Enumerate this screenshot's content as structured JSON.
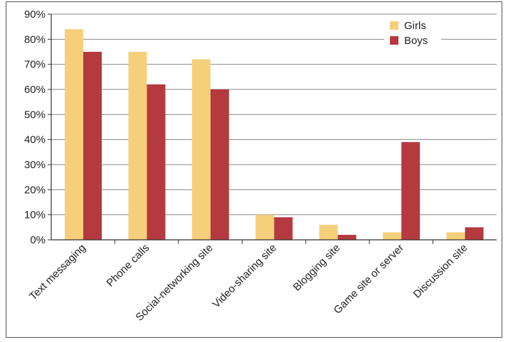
{
  "chart_data": {
    "type": "bar",
    "title": "",
    "xlabel": "",
    "ylabel": "",
    "categories": [
      "Text messaging",
      "Phone calls",
      "Social-networking site",
      "Video-sharing site",
      "Blogging site",
      "Game site or server",
      "Discussion site"
    ],
    "series": [
      {
        "name": "Girls",
        "color": "#f6cf7a",
        "values": [
          84,
          75,
          72,
          10,
          6,
          3,
          3
        ]
      },
      {
        "name": "Boys",
        "color": "#b53a3f",
        "values": [
          75,
          62,
          60,
          9,
          2,
          39,
          5
        ]
      }
    ],
    "ylim": [
      0,
      90
    ],
    "yticks": [
      "0%",
      "10%",
      "20%",
      "30%",
      "40%",
      "50%",
      "60%",
      "70%",
      "80%",
      "90%"
    ],
    "grid": true,
    "legend": "top-right"
  }
}
